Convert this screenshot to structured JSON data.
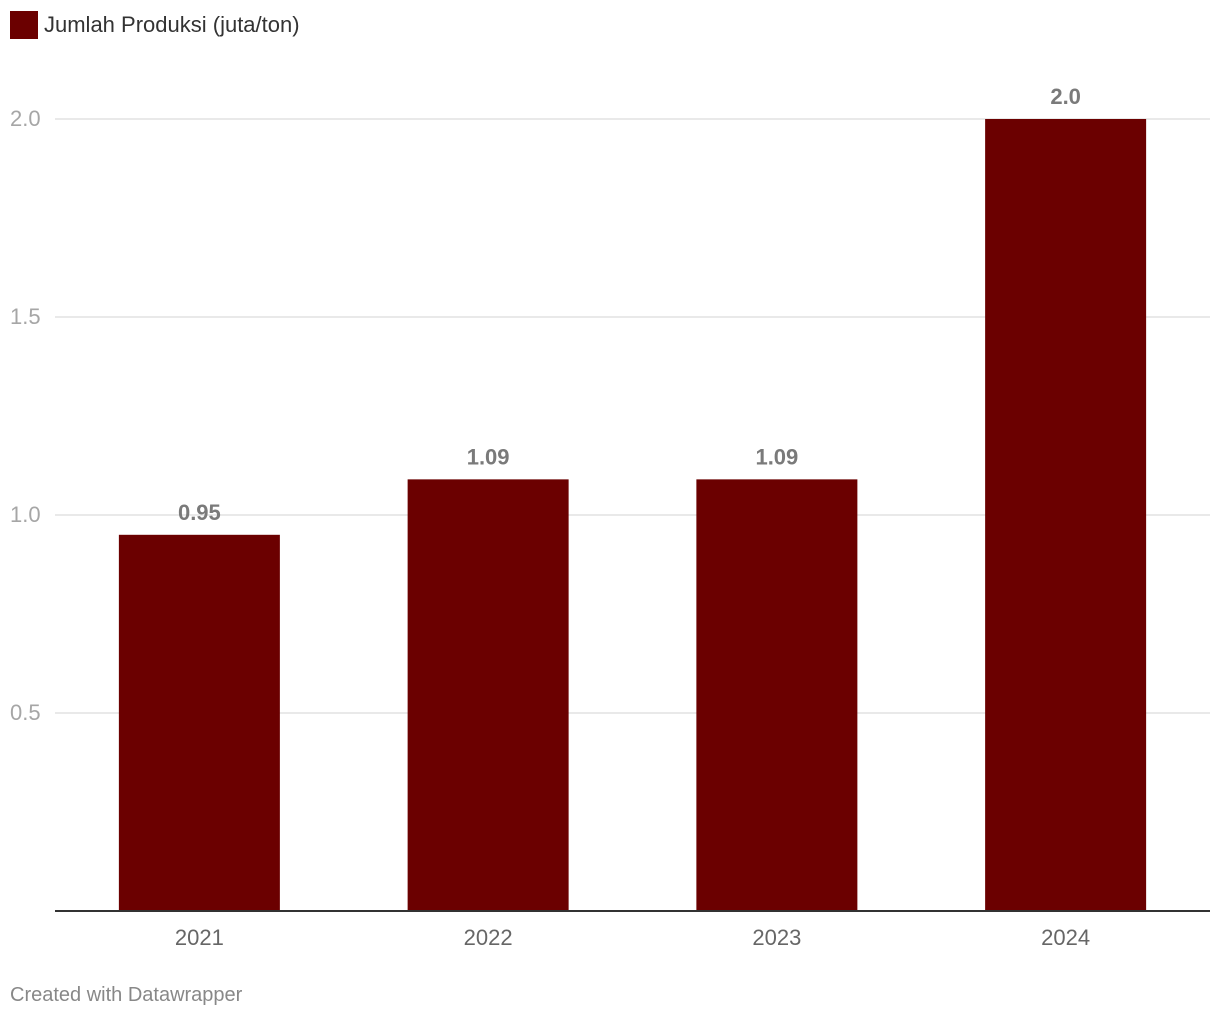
{
  "chart_data": {
    "type": "bar",
    "categories": [
      "2021",
      "2022",
      "2023",
      "2024"
    ],
    "series": [
      {
        "name": "Jumlah Produksi (juta/ton)",
        "values": [
          0.95,
          1.09,
          1.09,
          2.0
        ],
        "value_labels": [
          "0.95",
          "1.09",
          "1.09",
          "2.0"
        ],
        "color": "#6b0000"
      }
    ],
    "ylim": [
      0,
      2.0
    ],
    "yticks": [
      0.5,
      1.0,
      1.5,
      2.0
    ],
    "ytick_labels": [
      "0.5",
      "1.0",
      "1.5",
      "2.0"
    ],
    "grid": true,
    "legend_position": "top-left"
  },
  "footer": {
    "credit": "Created with Datawrapper"
  }
}
